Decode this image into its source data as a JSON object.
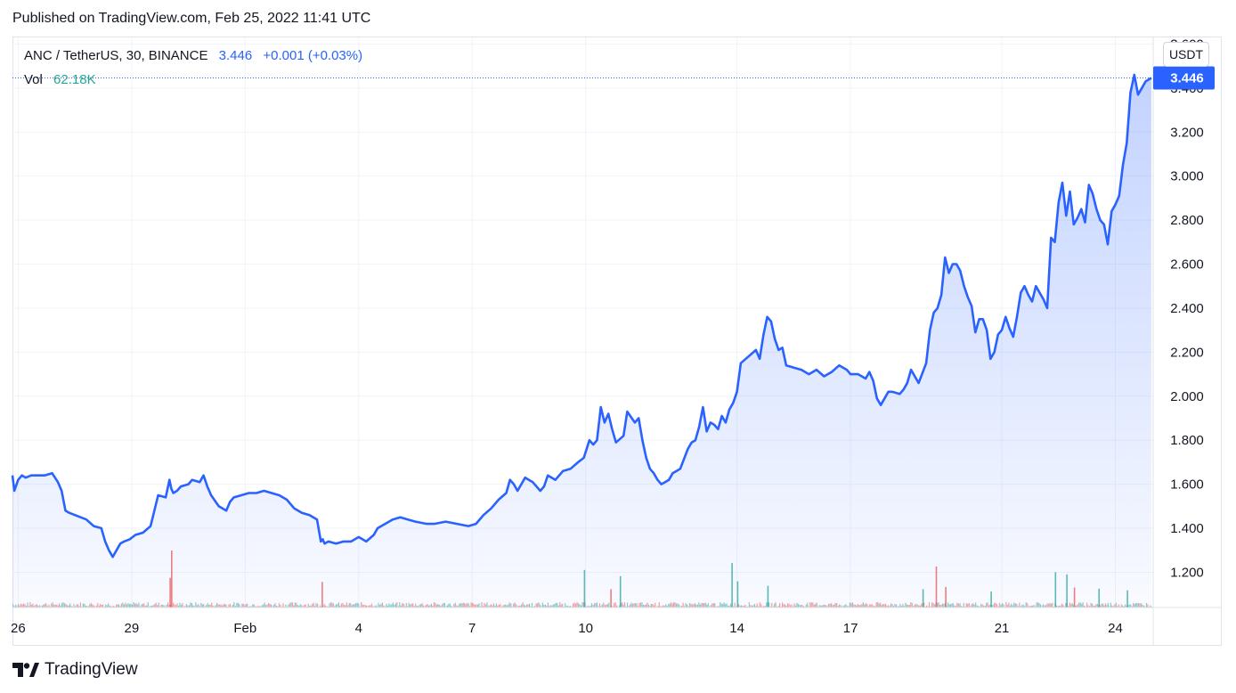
{
  "published_line": "Published on TradingView.com, Feb 25, 2022 11:41 UTC",
  "legend": {
    "symbol": "ANC / TetherUS, 30, BINANCE",
    "last": "3.446",
    "change": "+0.001 (+0.03%)",
    "vol_label": "Vol",
    "vol_value": "62.18K"
  },
  "price_unit": "USDT",
  "brand": "TradingView",
  "colors": {
    "line": "#2962ff",
    "vol_up": "#26a69a",
    "vol_down": "#ef5350"
  },
  "chart_data": {
    "type": "area",
    "title": "ANC / TetherUS, 30, BINANCE",
    "ylabel": "USDT",
    "ylim": [
      1.04,
      3.63
    ],
    "yticks": [
      1.2,
      1.4,
      1.6,
      1.8,
      2.0,
      2.2,
      2.4,
      2.6,
      2.8,
      3.0,
      3.2,
      3.4,
      3.6
    ],
    "ytick_labels": [
      "1.200",
      "1.400",
      "1.600",
      "1.800",
      "2.000",
      "2.200",
      "2.400",
      "2.600",
      "2.800",
      "3.000",
      "3.200",
      "3.400",
      "3.600"
    ],
    "xlim": [
      25.85,
      56.0
    ],
    "xticks": [
      {
        "label": "26",
        "day": 26
      },
      {
        "label": "29",
        "day": 29
      },
      {
        "label": "Feb",
        "day": 32
      },
      {
        "label": "4",
        "day": 35
      },
      {
        "label": "7",
        "day": 38
      },
      {
        "label": "10",
        "day": 41
      },
      {
        "label": "14",
        "day": 45
      },
      {
        "label": "17",
        "day": 48
      },
      {
        "label": "21",
        "day": 52
      },
      {
        "label": "24",
        "day": 55
      }
    ],
    "last_price": 3.446,
    "last_price_label": "3.446",
    "series": [
      {
        "x": [
          25.85,
          25.9,
          26.0,
          26.1,
          26.2,
          26.35,
          26.5,
          26.7,
          26.9,
          27.05,
          27.15,
          27.25,
          27.35,
          27.5,
          27.65,
          27.8,
          28.0,
          28.2,
          28.3,
          28.4,
          28.5,
          28.6,
          28.7,
          28.8,
          28.95,
          29.1,
          29.3,
          29.5,
          29.7,
          29.9,
          30.0,
          30.05,
          30.1,
          30.2,
          30.3,
          30.5,
          30.6,
          30.8,
          30.9,
          31.0,
          31.1,
          31.3,
          31.5,
          31.6,
          31.7,
          31.9,
          32.1,
          32.3,
          32.5,
          32.7,
          32.9,
          33.1,
          33.3,
          33.5,
          33.7,
          33.9,
          34.0,
          34.05,
          34.1,
          34.2,
          34.4,
          34.6,
          34.8,
          35.0,
          35.2,
          35.4,
          35.5,
          35.7,
          35.9,
          36.1,
          36.3,
          36.5,
          36.8,
          37.0,
          37.3,
          37.6,
          37.9,
          38.1,
          38.3,
          38.5,
          38.7,
          38.9,
          39.0,
          39.1,
          39.2,
          39.4,
          39.6,
          39.8,
          39.9,
          40.0,
          40.2,
          40.4,
          40.6,
          40.8,
          40.95,
          41.1,
          41.2,
          41.3,
          41.4,
          41.5,
          41.6,
          41.7,
          41.8,
          42.0,
          42.1,
          42.3,
          42.4,
          42.5,
          42.6,
          42.7,
          42.8,
          42.9,
          43.0,
          43.1,
          43.2,
          43.3,
          43.5,
          43.7,
          43.8,
          43.9,
          44.0,
          44.1,
          44.2,
          44.3,
          44.4,
          44.5,
          44.6,
          44.7,
          44.8,
          44.9,
          45.0,
          45.1,
          45.3,
          45.5,
          45.6,
          45.7,
          45.8,
          45.9,
          46.0,
          46.1,
          46.2,
          46.3,
          46.5,
          46.7,
          46.9,
          47.1,
          47.3,
          47.5,
          47.7,
          47.9,
          48.0,
          48.2,
          48.4,
          48.5,
          48.6,
          48.7,
          48.8,
          49.0,
          49.1,
          49.3,
          49.4,
          49.5,
          49.6,
          49.8,
          50.0,
          50.1,
          50.2,
          50.3,
          50.4,
          50.5,
          50.6,
          50.7,
          50.8,
          50.9,
          51.0,
          51.1,
          51.2,
          51.3,
          51.4,
          51.5,
          51.6,
          51.7,
          51.8,
          51.9,
          52.0,
          52.1,
          52.2,
          52.3,
          52.4,
          52.5,
          52.6,
          52.7,
          52.8,
          52.9,
          53.0,
          53.1,
          53.2,
          53.3,
          53.4,
          53.5,
          53.6,
          53.7,
          53.8,
          53.9,
          54.0,
          54.1,
          54.2,
          54.3,
          54.4,
          54.5,
          54.6,
          54.7,
          54.8,
          54.9,
          55.0,
          55.1,
          55.2,
          55.3,
          55.4,
          55.5,
          55.6,
          55.7,
          55.8,
          55.95
        ],
        "y": [
          1.64,
          1.57,
          1.62,
          1.64,
          1.63,
          1.64,
          1.64,
          1.64,
          1.65,
          1.61,
          1.57,
          1.48,
          1.47,
          1.46,
          1.45,
          1.44,
          1.41,
          1.4,
          1.34,
          1.3,
          1.27,
          1.3,
          1.33,
          1.34,
          1.35,
          1.37,
          1.38,
          1.41,
          1.55,
          1.54,
          1.62,
          1.58,
          1.56,
          1.57,
          1.59,
          1.6,
          1.62,
          1.61,
          1.64,
          1.59,
          1.55,
          1.5,
          1.48,
          1.52,
          1.54,
          1.55,
          1.56,
          1.56,
          1.57,
          1.56,
          1.55,
          1.53,
          1.49,
          1.47,
          1.46,
          1.44,
          1.34,
          1.35,
          1.33,
          1.34,
          1.33,
          1.34,
          1.34,
          1.36,
          1.34,
          1.37,
          1.4,
          1.42,
          1.44,
          1.45,
          1.44,
          1.43,
          1.42,
          1.42,
          1.43,
          1.42,
          1.41,
          1.42,
          1.46,
          1.49,
          1.53,
          1.56,
          1.62,
          1.6,
          1.57,
          1.63,
          1.61,
          1.57,
          1.59,
          1.64,
          1.62,
          1.66,
          1.67,
          1.7,
          1.72,
          1.8,
          1.78,
          1.8,
          1.95,
          1.88,
          1.92,
          1.85,
          1.79,
          1.82,
          1.93,
          1.88,
          1.9,
          1.8,
          1.72,
          1.67,
          1.65,
          1.62,
          1.6,
          1.61,
          1.62,
          1.65,
          1.67,
          1.76,
          1.79,
          1.8,
          1.86,
          1.95,
          1.84,
          1.88,
          1.87,
          1.85,
          1.91,
          1.88,
          1.94,
          1.97,
          2.02,
          2.15,
          2.18,
          2.21,
          2.17,
          2.28,
          2.36,
          2.34,
          2.26,
          2.21,
          2.22,
          2.14,
          2.13,
          2.12,
          2.1,
          2.12,
          2.09,
          2.11,
          2.14,
          2.12,
          2.1,
          2.1,
          2.08,
          2.11,
          2.07,
          1.99,
          1.96,
          2.02,
          2.02,
          2.01,
          2.03,
          2.06,
          2.12,
          2.06,
          2.15,
          2.3,
          2.38,
          2.4,
          2.46,
          2.63,
          2.56,
          2.6,
          2.6,
          2.57,
          2.5,
          2.45,
          2.41,
          2.29,
          2.35,
          2.35,
          2.3,
          2.17,
          2.2,
          2.28,
          2.3,
          2.36,
          2.31,
          2.27,
          2.36,
          2.47,
          2.5,
          2.46,
          2.43,
          2.5,
          2.47,
          2.44,
          2.4,
          2.72,
          2.7,
          2.88,
          2.97,
          2.82,
          2.93,
          2.78,
          2.81,
          2.85,
          2.79,
          2.96,
          2.92,
          2.85,
          2.8,
          2.78,
          2.69,
          2.84,
          2.87,
          2.91,
          3.05,
          3.15,
          3.38,
          3.46,
          3.37,
          3.4,
          3.43,
          3.446
        ]
      }
    ],
    "volume": [
      {
        "x": 30.04,
        "v": 1.0,
        "dir": "down"
      },
      {
        "x": 30.0,
        "v": 0.52,
        "dir": "down"
      },
      {
        "x": 34.02,
        "v": 0.45,
        "dir": "down"
      },
      {
        "x": 40.95,
        "v": 0.66,
        "dir": "up"
      },
      {
        "x": 41.65,
        "v": 0.32,
        "dir": "down"
      },
      {
        "x": 41.9,
        "v": 0.55,
        "dir": "up"
      },
      {
        "x": 44.85,
        "v": 0.78,
        "dir": "up"
      },
      {
        "x": 45.0,
        "v": 0.46,
        "dir": "up"
      },
      {
        "x": 45.8,
        "v": 0.38,
        "dir": "up"
      },
      {
        "x": 50.25,
        "v": 0.72,
        "dir": "down"
      },
      {
        "x": 49.9,
        "v": 0.32,
        "dir": "up"
      },
      {
        "x": 50.5,
        "v": 0.36,
        "dir": "down"
      },
      {
        "x": 51.7,
        "v": 0.28,
        "dir": "up"
      },
      {
        "x": 53.4,
        "v": 0.62,
        "dir": "up"
      },
      {
        "x": 53.7,
        "v": 0.58,
        "dir": "up"
      },
      {
        "x": 53.9,
        "v": 0.35,
        "dir": "down"
      },
      {
        "x": 54.55,
        "v": 0.33,
        "dir": "up"
      },
      {
        "x": 55.3,
        "v": 0.3,
        "dir": "up"
      }
    ]
  }
}
